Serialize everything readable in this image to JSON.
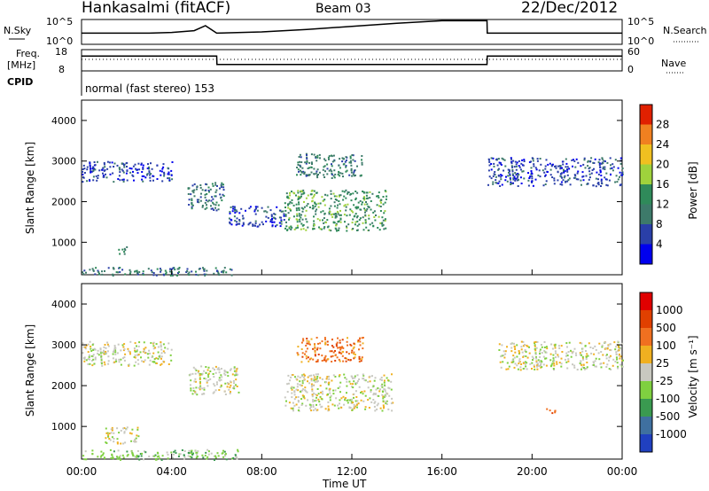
{
  "header": {
    "station": "Hankasalmi (fitACF)",
    "beam": "Beam 03",
    "date": "22/Dec/2012"
  },
  "noise_panel": {
    "left_label": "N.Sky",
    "right_label": "N.Search",
    "left_ticks": [
      "10^5",
      "10^0"
    ],
    "right_ticks": [
      "10^5",
      "10^0"
    ]
  },
  "freq_panel": {
    "left_label_lines": [
      "Freq.",
      "[MHz]"
    ],
    "right_label": "Nave",
    "left_ticks": [
      "18",
      "8"
    ],
    "right_ticks": [
      "60",
      "0"
    ]
  },
  "cpid": {
    "label": "CPID",
    "text": "normal (fast stereo) 153"
  },
  "colorbars": {
    "power": {
      "label": "Power [dB]",
      "ticks": [
        "28",
        "24",
        "20",
        "16",
        "12",
        "8",
        "4"
      ],
      "colors": [
        "#0000ee",
        "#2a3fa8",
        "#3d7a6a",
        "#2f8a5a",
        "#9fd23c",
        "#f0c020",
        "#f08020",
        "#e02000"
      ]
    },
    "velocity": {
      "label": "Velocity [m s⁻¹]",
      "ticks": [
        "1000",
        "500",
        "100",
        "25",
        "-25",
        "-100",
        "-500",
        "-1000"
      ],
      "colors": [
        "#2040c0",
        "#3f70a0",
        "#3a9a50",
        "#7fd040",
        "#c8c8c0",
        "#f0b020",
        "#f07020",
        "#e04000",
        "#e00000"
      ]
    }
  },
  "chart_data": [
    {
      "type": "heatmap",
      "panel": "power",
      "ylabel": "Slant Range [km]",
      "xlabel": "",
      "ylim": [
        200,
        4500
      ],
      "yticks": [
        "4000",
        "3000",
        "2000",
        "1000"
      ],
      "xticks": [
        "00:00",
        "04:00",
        "08:00",
        "12:00",
        "16:00",
        "20:00",
        "00:00"
      ],
      "colorbar": "power",
      "echo_regions": [
        {
          "t": [
            0.0,
            4.0
          ],
          "r": [
            2500,
            3000
          ],
          "level": 1
        },
        {
          "t": [
            1.5,
            2.0
          ],
          "r": [
            700,
            900
          ],
          "level": 2
        },
        {
          "t": [
            4.7,
            6.3
          ],
          "r": [
            1800,
            2500
          ],
          "level": 2
        },
        {
          "t": [
            6.5,
            9.0
          ],
          "r": [
            1400,
            1900
          ],
          "level": 1
        },
        {
          "t": [
            9.0,
            13.5
          ],
          "r": [
            1300,
            2300
          ],
          "level": 3
        },
        {
          "t": [
            9.5,
            12.5
          ],
          "r": [
            2600,
            3200
          ],
          "level": 2
        },
        {
          "t": [
            18.0,
            24.0
          ],
          "r": [
            2400,
            3100
          ],
          "level": 1
        },
        {
          "t": [
            0.0,
            7.0
          ],
          "r": [
            200,
            400
          ],
          "level": 2
        }
      ]
    },
    {
      "type": "heatmap",
      "panel": "velocity",
      "ylabel": "Slant Range [km]",
      "xlabel": "Time UT",
      "ylim": [
        200,
        4500
      ],
      "yticks": [
        "4000",
        "3000",
        "2000",
        "1000"
      ],
      "xticks": [
        "00:00",
        "04:00",
        "08:00",
        "12:00",
        "16:00",
        "20:00",
        "00:00"
      ],
      "colorbar": "velocity",
      "echo_regions": [
        {
          "t": [
            0.0,
            4.0
          ],
          "r": [
            2500,
            3100
          ],
          "level": 4
        },
        {
          "t": [
            1.0,
            2.5
          ],
          "r": [
            600,
            1000
          ],
          "level": 4
        },
        {
          "t": [
            4.7,
            7.0
          ],
          "r": [
            1800,
            2500
          ],
          "level": 4
        },
        {
          "t": [
            9.0,
            13.8
          ],
          "r": [
            1400,
            2300
          ],
          "level": 4
        },
        {
          "t": [
            9.5,
            12.5
          ],
          "r": [
            2600,
            3200
          ],
          "level": 6
        },
        {
          "t": [
            18.5,
            24.0
          ],
          "r": [
            2400,
            3100
          ],
          "level": 4
        },
        {
          "t": [
            0.0,
            7.0
          ],
          "r": [
            200,
            450
          ],
          "level": 3
        },
        {
          "t": [
            20.5,
            21.0
          ],
          "r": [
            1300,
            1450
          ],
          "level": 6
        }
      ]
    },
    {
      "type": "line",
      "panel": "noise",
      "series": [
        {
          "x": [
            0,
            1,
            2,
            3,
            4,
            5,
            5.5,
            6,
            8,
            10,
            12,
            14,
            16,
            17,
            18,
            18.01,
            20,
            22,
            24
          ],
          "y": [
            0.45,
            0.45,
            0.45,
            0.45,
            0.48,
            0.55,
            0.75,
            0.45,
            0.5,
            0.6,
            0.72,
            0.85,
            0.95,
            0.95,
            0.95,
            0.45,
            0.45,
            0.45,
            0.45
          ]
        }
      ]
    },
    {
      "type": "line",
      "panel": "frequency",
      "series": [
        {
          "x": [
            0,
            6,
            6.01,
            18,
            18.01,
            24
          ],
          "y": [
            0.7,
            0.7,
            0.3,
            0.3,
            0.7,
            0.7
          ]
        }
      ]
    }
  ]
}
